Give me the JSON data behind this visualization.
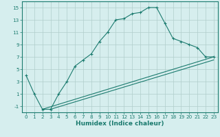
{
  "xlabel": "Humidex (Indice chaleur)",
  "line1_x": [
    0,
    1,
    2,
    3,
    4,
    5,
    6,
    7,
    8,
    9,
    10,
    11,
    12,
    13,
    14,
    15,
    16,
    17,
    18,
    19,
    20,
    21,
    22,
    23
  ],
  "line1_y": [
    4,
    1,
    -1.5,
    -1.5,
    1,
    3,
    5.5,
    6.5,
    7.5,
    9.5,
    11,
    13,
    13.2,
    14,
    14.2,
    15,
    15,
    12.5,
    10,
    9.5,
    9,
    8.5,
    7,
    7
  ],
  "line2_x": [
    2,
    23
  ],
  "line2_y": [
    -1.5,
    7
  ],
  "line3_x": [
    3,
    23
  ],
  "line3_y": [
    -1.5,
    6.5
  ],
  "line_color": "#1a7a6e",
  "bg_color": "#d6eeee",
  "grid_color": "#b0cecb",
  "xlim": [
    -0.5,
    23.5
  ],
  "ylim": [
    -2,
    16
  ],
  "xticks": [
    0,
    1,
    2,
    3,
    4,
    5,
    6,
    7,
    8,
    9,
    10,
    11,
    12,
    13,
    14,
    15,
    16,
    17,
    18,
    19,
    20,
    21,
    22,
    23
  ],
  "yticks": [
    -1,
    1,
    3,
    5,
    7,
    9,
    11,
    13,
    15
  ],
  "tick_fontsize": 5.2,
  "xlabel_fontsize": 6.5,
  "marker": "+",
  "markersize": 3.5,
  "linewidth": 0.8
}
